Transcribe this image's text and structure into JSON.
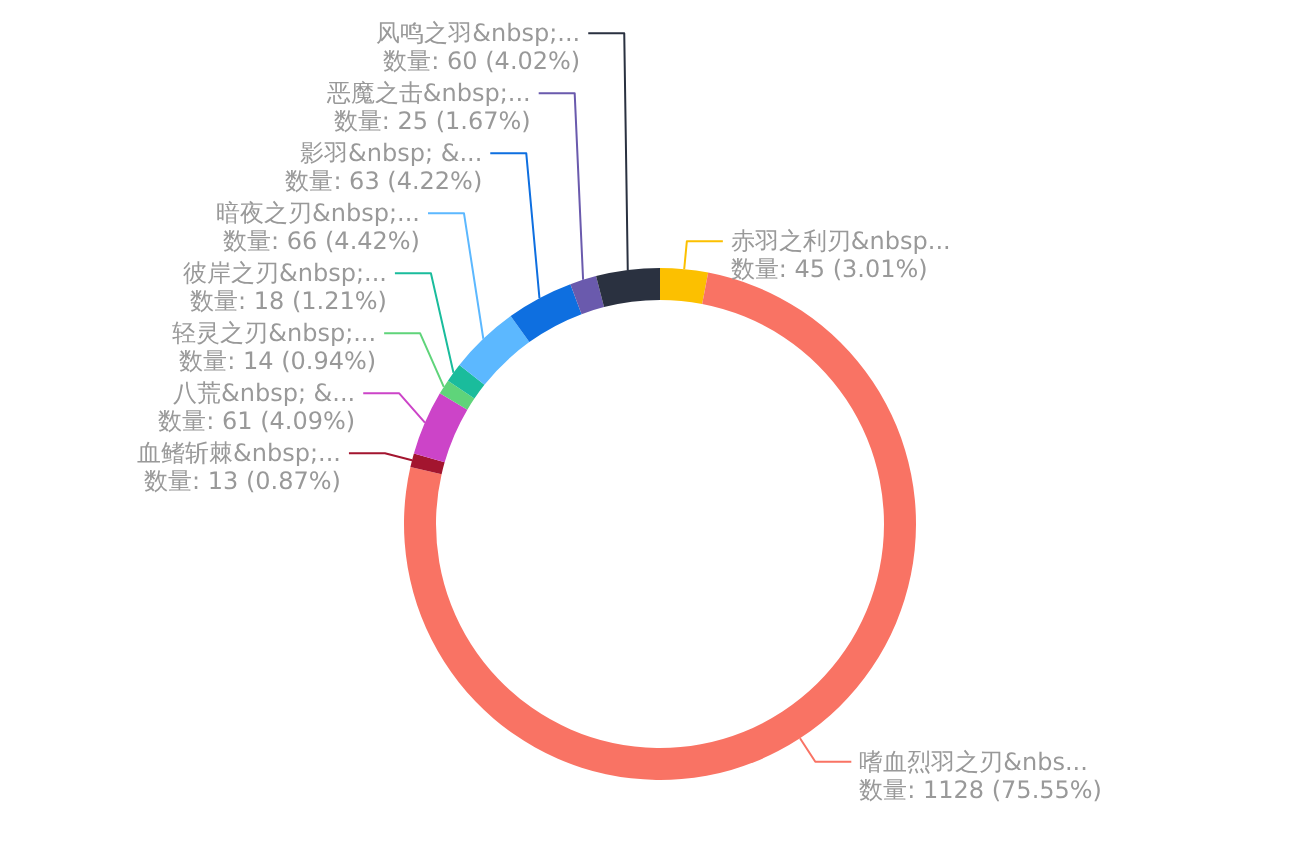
{
  "chart_data": {
    "type": "donut",
    "categories": [
      "赤羽之利刃&nbsp...",
      "嗜血烈羽之刃&nbs...",
      "血鳍斩棘&nbsp;...",
      "八荒&nbsp; &...",
      "轻灵之刃&nbsp;...",
      "彼岸之刃&nbsp;...",
      "暗夜之刃&nbsp;...",
      "影羽&nbsp; &...",
      "恶魔之击&nbsp;...",
      "风鸣之羽&nbsp;..."
    ],
    "values": [
      45,
      1128,
      13,
      61,
      14,
      18,
      66,
      63,
      25,
      60
    ],
    "colors": [
      "#fcc000",
      "#f97364",
      "#a3152f",
      "#cc44c8",
      "#5fd47a",
      "#1abc9c",
      "#5cb8ff",
      "#0e6fe0",
      "#6a5aad",
      "#2a3140"
    ],
    "value_labels": [
      "数量: 45 (3.01%)",
      "数量: 1128 (75.55%)",
      "数量: 13 (0.87%)",
      "数量: 61 (4.09%)",
      "数量: 14 (0.94%)",
      "数量: 18 (1.21%)",
      "数量: 66 (4.42%)",
      "数量: 63 (4.22%)",
      "数量: 25 (1.67%)",
      "数量: 60 (4.02%)"
    ]
  }
}
